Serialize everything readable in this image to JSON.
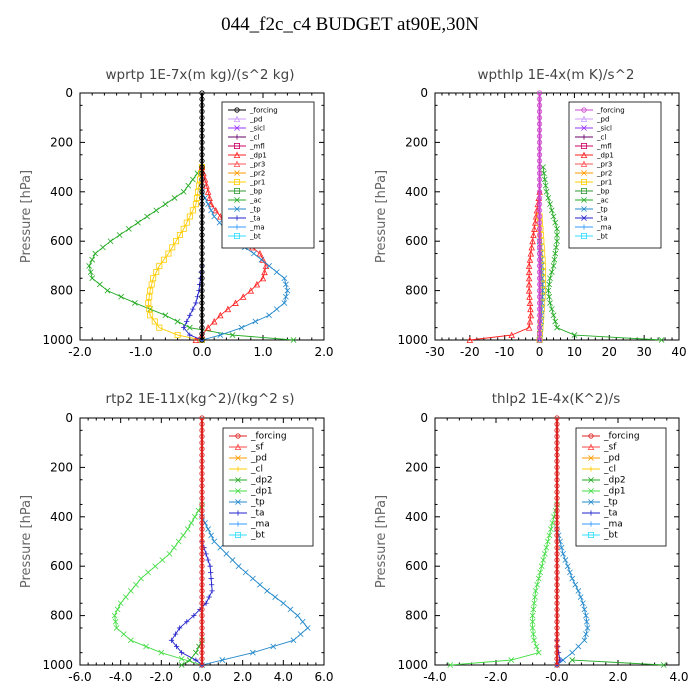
{
  "title": "044_f2c_c4  BUDGET at90E,30N",
  "chart_data": [
    {
      "type": "line",
      "title": "wprtp  1E-7x(m kg)/(s^2 kg)",
      "ylabel": "Pressure [hPa]",
      "xlim": [
        -2.0,
        2.0
      ],
      "ylim": [
        1000,
        0
      ],
      "xticks": [
        "-2.0",
        "-1.0",
        "0.0",
        "1.0",
        "2.0"
      ],
      "yticks": [
        "0",
        "200",
        "400",
        "600",
        "800",
        "1000"
      ],
      "legend_position": "top-right",
      "legend": [
        "_forcing",
        "_pd",
        "_sicl",
        "_cl",
        "_mfl",
        "_dp1",
        "_pr3",
        "_pr2",
        "_pr1",
        "_bp",
        "_ac",
        "_tp",
        "_ta",
        "_ma",
        "_bt"
      ],
      "series": [
        {
          "name": "_forcing",
          "color": "#000000",
          "marker": "circle",
          "p": [
            0,
            100,
            200,
            300,
            400,
            500,
            600,
            700,
            800,
            900,
            1000
          ],
          "x": [
            0,
            0,
            0,
            0,
            0,
            0,
            0,
            0,
            0,
            0,
            0
          ]
        },
        {
          "name": "_ac",
          "color": "#22aa22",
          "marker": "x",
          "p": [
            300,
            400,
            500,
            600,
            650,
            700,
            750,
            800,
            850,
            900,
            950,
            980,
            1000
          ],
          "x": [
            0,
            -0.3,
            -0.9,
            -1.5,
            -1.75,
            -1.85,
            -1.8,
            -1.55,
            -1.1,
            -0.6,
            -0.2,
            0.5,
            1.5
          ]
        },
        {
          "name": "_pr1",
          "color": "#ffcc00",
          "marker": "square",
          "p": [
            300,
            450,
            550,
            650,
            700,
            750,
            800,
            850,
            900,
            950,
            980,
            1000
          ],
          "x": [
            0,
            -0.1,
            -0.3,
            -0.55,
            -0.7,
            -0.8,
            -0.85,
            -0.88,
            -0.85,
            -0.7,
            -0.4,
            0
          ]
        },
        {
          "name": "_dp1",
          "color": "#ff2222",
          "marker": "triangle",
          "p": [
            300,
            450,
            550,
            600,
            650,
            700,
            750,
            800,
            850,
            900,
            950,
            980,
            1000
          ],
          "x": [
            0,
            0.15,
            0.45,
            0.7,
            0.95,
            1.05,
            1.0,
            0.8,
            0.55,
            0.3,
            0.1,
            0,
            -0.1
          ]
        },
        {
          "name": "_tp",
          "color": "#2288cc",
          "marker": "x",
          "p": [
            400,
            500,
            600,
            650,
            700,
            750,
            800,
            850,
            900,
            950,
            980,
            1000
          ],
          "x": [
            0,
            0.2,
            0.55,
            0.85,
            1.1,
            1.35,
            1.4,
            1.35,
            1.1,
            0.65,
            0.3,
            0
          ]
        },
        {
          "name": "_ta",
          "color": "#2222cc",
          "marker": "plus",
          "p": [
            700,
            800,
            850,
            900,
            950,
            980,
            1000
          ],
          "x": [
            0,
            -0.05,
            -0.1,
            -0.2,
            -0.3,
            -0.2,
            0
          ]
        }
      ]
    },
    {
      "type": "line",
      "title": "wpthlp  1E-4x(m K)/s^2",
      "ylabel": "Pressure [hPa]",
      "xlim": [
        -30,
        40
      ],
      "ylim": [
        1000,
        0
      ],
      "xticks": [
        "-30",
        "-20",
        "-10",
        "0",
        "10",
        "20",
        "30",
        "40"
      ],
      "yticks": [
        "0",
        "200",
        "400",
        "600",
        "800",
        "1000"
      ],
      "legend_position": "top-right",
      "legend": [
        "_forcing",
        "_pd",
        "_sicl",
        "_cl",
        "_mfl",
        "_dp1",
        "_pr3",
        "_pr2",
        "_pr1",
        "_bp",
        "_ac",
        "_tp",
        "_ta",
        "_ma",
        "_bt"
      ],
      "series": [
        {
          "name": "_forcing",
          "color": "#cc44cc",
          "marker": "circle",
          "p": [
            0,
            100,
            200,
            300,
            400,
            500,
            600,
            700,
            800,
            900,
            1000
          ],
          "x": [
            0,
            0,
            0,
            0,
            0,
            0,
            0,
            0,
            0,
            0,
            0
          ]
        },
        {
          "name": "_ac",
          "color": "#22aa22",
          "marker": "x",
          "p": [
            300,
            400,
            450,
            500,
            550,
            600,
            650,
            700,
            750,
            800,
            850,
            900,
            950,
            980,
            1000
          ],
          "x": [
            1,
            2,
            3,
            4,
            5,
            5,
            4.5,
            4,
            3,
            2.5,
            3,
            4,
            5,
            10,
            35
          ]
        },
        {
          "name": "_dp1",
          "color": "#ff2222",
          "marker": "triangle",
          "p": [
            400,
            500,
            600,
            700,
            800,
            900,
            950,
            980,
            1000
          ],
          "x": [
            0,
            -1,
            -2,
            -3,
            -3,
            -2.5,
            -3,
            -8,
            -20
          ]
        },
        {
          "name": "_pr1",
          "color": "#ffcc00",
          "marker": "square",
          "p": [
            500,
            600,
            700,
            800,
            900,
            1000
          ],
          "x": [
            0,
            0.5,
            1,
            1,
            0.5,
            0
          ]
        },
        {
          "name": "_tp",
          "color": "#2288cc",
          "marker": "x",
          "p": [
            600,
            700,
            800,
            900,
            1000
          ],
          "x": [
            0,
            0.5,
            0.8,
            0.5,
            0
          ]
        }
      ]
    },
    {
      "type": "line",
      "title": "rtp2  1E-11x(kg^2)/(kg^2 s)",
      "ylabel": "Pressure [hPa]",
      "xlim": [
        -6.0,
        6.0
      ],
      "ylim": [
        1000,
        0
      ],
      "xticks": [
        "-6.0",
        "-4.0",
        "-2.0",
        "0.0",
        "2.0",
        "4.0",
        "6.0"
      ],
      "yticks": [
        "0",
        "200",
        "400",
        "600",
        "800",
        "1000"
      ],
      "legend_position": "top-right",
      "legend": [
        "_forcing",
        "_sf",
        "_pd",
        "_cl",
        "_dp2",
        "_dp1",
        "_tp",
        "_ta",
        "_ma",
        "_bt"
      ],
      "series": [
        {
          "name": "_forcing",
          "color": "#dd2222",
          "marker": "circle",
          "p": [
            0,
            100,
            200,
            300,
            400,
            500,
            600,
            700,
            800,
            900,
            1000
          ],
          "x": [
            0,
            0,
            0,
            0,
            0,
            0,
            0,
            0,
            0,
            0,
            0
          ]
        },
        {
          "name": "_dp1",
          "color": "#44dd44",
          "marker": "x",
          "p": [
            350,
            450,
            550,
            600,
            650,
            700,
            750,
            800,
            850,
            900,
            950,
            1000
          ],
          "x": [
            0,
            -0.7,
            -1.6,
            -2.3,
            -3.0,
            -3.5,
            -4.0,
            -4.3,
            -4.2,
            -3.5,
            -2.0,
            0
          ]
        },
        {
          "name": "_tp",
          "color": "#2288cc",
          "marker": "x",
          "p": [
            400,
            500,
            600,
            700,
            750,
            800,
            850,
            900,
            950,
            980,
            1000
          ],
          "x": [
            0,
            0.6,
            1.8,
            3.2,
            4.0,
            4.7,
            5.2,
            4.5,
            2.5,
            1.0,
            0
          ]
        },
        {
          "name": "_ta",
          "color": "#2222cc",
          "marker": "plus",
          "p": [
            500,
            600,
            700,
            750,
            800,
            850,
            900,
            950,
            980,
            1000
          ],
          "x": [
            0,
            0.4,
            0.5,
            0.2,
            -0.4,
            -1.1,
            -1.5,
            -1.0,
            -0.3,
            0
          ]
        },
        {
          "name": "_dp2",
          "color": "#22aa22",
          "marker": "x",
          "p": [
            900,
            950,
            980,
            1000
          ],
          "x": [
            0,
            -0.3,
            -0.6,
            -1.0
          ]
        }
      ]
    },
    {
      "type": "line",
      "title": "thlp2  1E-4x(K^2)/s",
      "ylabel": "Pressure [hPa]",
      "xlim": [
        -4.0,
        4.0
      ],
      "ylim": [
        1000,
        0
      ],
      "xticks": [
        "-4.0",
        "-2.0",
        "-0.0",
        "2.0",
        "4.0"
      ],
      "yticks": [
        "0",
        "200",
        "400",
        "600",
        "800",
        "1000"
      ],
      "legend_position": "top-right",
      "legend": [
        "_forcing",
        "_sf",
        "_pd",
        "_cl",
        "_dp2",
        "_dp1",
        "_tp",
        "_ta",
        "_ma",
        "_bt"
      ],
      "series": [
        {
          "name": "_forcing",
          "color": "#dd2222",
          "marker": "circle",
          "p": [
            0,
            100,
            200,
            300,
            400,
            500,
            600,
            700,
            800,
            900,
            1000
          ],
          "x": [
            0,
            0,
            0,
            0,
            0,
            0,
            0,
            0,
            0,
            0,
            0
          ]
        },
        {
          "name": "_dp1",
          "color": "#44dd44",
          "marker": "x",
          "p": [
            350,
            450,
            550,
            650,
            700,
            750,
            800,
            850,
            900,
            950,
            980,
            1000
          ],
          "x": [
            0,
            -0.2,
            -0.4,
            -0.6,
            -0.7,
            -0.75,
            -0.8,
            -0.8,
            -0.75,
            -0.6,
            -1.5,
            -3.5
          ]
        },
        {
          "name": "_tp",
          "color": "#2288cc",
          "marker": "x",
          "p": [
            450,
            550,
            650,
            700,
            750,
            800,
            850,
            900,
            950,
            980,
            1000
          ],
          "x": [
            0,
            0.2,
            0.5,
            0.7,
            0.85,
            0.95,
            1.0,
            0.9,
            0.5,
            0.2,
            0
          ]
        },
        {
          "name": "_dp2",
          "color": "#22aa22",
          "marker": "x",
          "p": [
            980,
            1000
          ],
          "x": [
            0.5,
            3.5
          ]
        },
        {
          "name": "_ta",
          "color": "#2222cc",
          "marker": "plus",
          "p": [
            900,
            950,
            980,
            1000
          ],
          "x": [
            0,
            0.05,
            0.1,
            0
          ]
        }
      ]
    }
  ]
}
